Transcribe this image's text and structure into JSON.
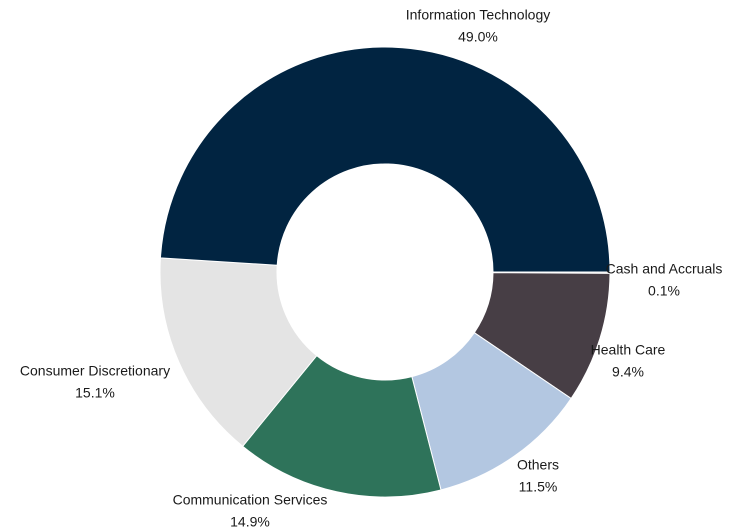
{
  "chart_data": {
    "type": "donut",
    "categories": [
      "Cash and Accruals",
      "Health Care",
      "Others",
      "Communication Services",
      "Consumer Discretionary",
      "Information Technology"
    ],
    "values": [
      0.1,
      9.4,
      11.5,
      14.9,
      15.1,
      49.0
    ],
    "value_labels": [
      "0.1%",
      "9.4%",
      "11.5%",
      "14.9%",
      "15.1%",
      "49.0%"
    ],
    "colors": [
      "#d9d9d9",
      "#473e45",
      "#b3c7e1",
      "#2e735a",
      "#e4e4e4",
      "#012441"
    ]
  }
}
